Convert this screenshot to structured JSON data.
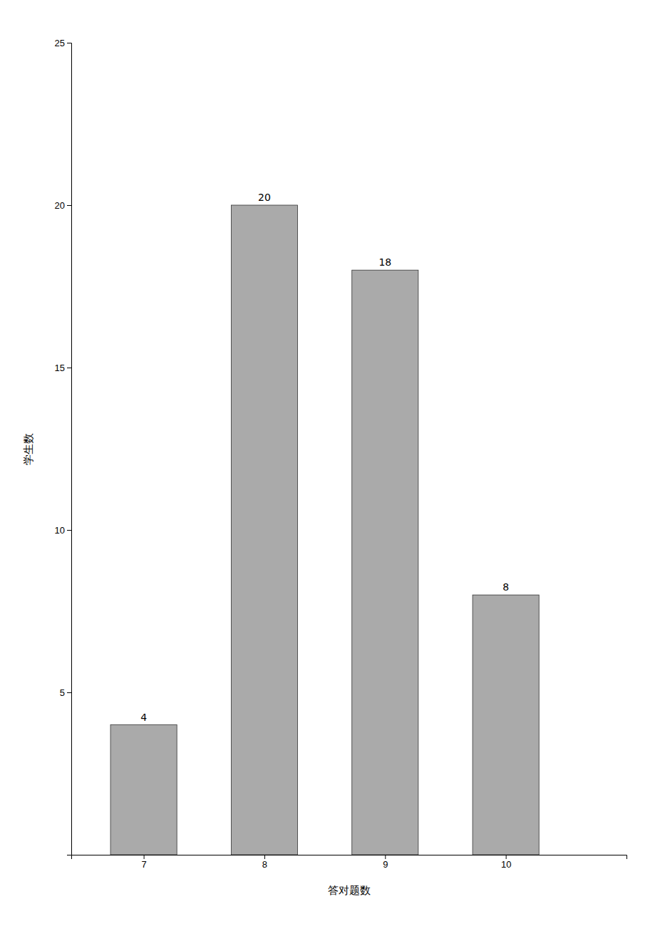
{
  "chart_data": {
    "type": "bar",
    "x": [
      7,
      8,
      9,
      10
    ],
    "values": [
      4,
      20,
      18,
      8
    ],
    "color": "#aaaaaa",
    "xlabel": "答对题数",
    "ylabel": "学生数",
    "xlim": [
      6.4,
      11.0
    ],
    "xticks": [
      7,
      8,
      9,
      10
    ],
    "ylim": [
      0,
      25
    ],
    "yticks": [
      5,
      10,
      15,
      20,
      25
    ],
    "data_labels": true
  }
}
